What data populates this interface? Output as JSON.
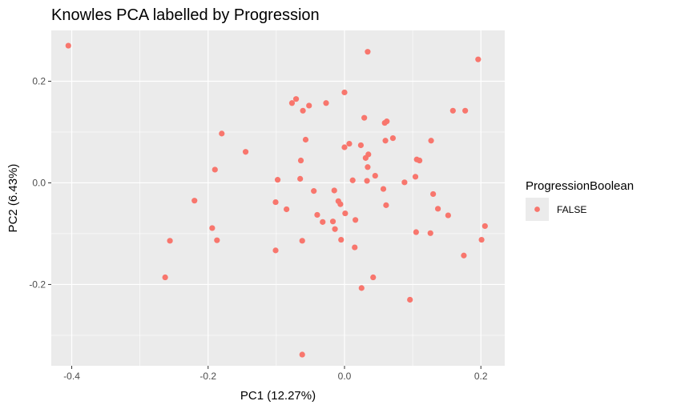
{
  "chart_data": {
    "type": "scatter",
    "title": "Knowles PCA labelled by Progression",
    "xlabel": "PC1 (12.27%)",
    "ylabel": "PC2 (6.43%)",
    "xlim": [
      -0.43,
      0.235
    ],
    "ylim": [
      -0.36,
      0.3
    ],
    "x_ticks": [
      -0.4,
      -0.2,
      0.0,
      0.2
    ],
    "x_tick_labels": [
      "-0.4",
      "-0.2",
      "0.0",
      "0.2"
    ],
    "y_ticks": [
      -0.2,
      0.0,
      0.2
    ],
    "y_tick_labels": [
      "-0.2",
      "0.0",
      "0.2"
    ],
    "x_minor_ticks": [
      -0.3,
      -0.1,
      0.1
    ],
    "y_minor_ticks": [
      -0.3,
      -0.1,
      0.1
    ],
    "grid": true,
    "panel_background": "#ebebeb",
    "grid_color": "#ffffff",
    "legend": {
      "title": "ProgressionBoolean",
      "entries": [
        {
          "label": "FALSE",
          "color": "#f8766d"
        }
      ],
      "placement": "right"
    },
    "series": [
      {
        "name": "FALSE",
        "color": "#f8766d",
        "points": [
          {
            "x": -0.405,
            "y": 0.27
          },
          {
            "x": 0.034,
            "y": 0.258
          },
          {
            "x": 0.196,
            "y": 0.243
          },
          {
            "x": -0.071,
            "y": 0.165
          },
          {
            "x": -0.077,
            "y": 0.157
          },
          {
            "x": -0.052,
            "y": 0.152
          },
          {
            "x": -0.027,
            "y": 0.157
          },
          {
            "x": -0.061,
            "y": 0.142
          },
          {
            "x": 0.0,
            "y": 0.178
          },
          {
            "x": 0.159,
            "y": 0.142
          },
          {
            "x": 0.177,
            "y": 0.142
          },
          {
            "x": 0.029,
            "y": 0.128
          },
          {
            "x": 0.062,
            "y": 0.121
          },
          {
            "x": 0.059,
            "y": 0.118
          },
          {
            "x": -0.18,
            "y": 0.097
          },
          {
            "x": -0.057,
            "y": 0.085
          },
          {
            "x": 0.071,
            "y": 0.088
          },
          {
            "x": 0.06,
            "y": 0.083
          },
          {
            "x": 0.127,
            "y": 0.083
          },
          {
            "x": 0.007,
            "y": 0.077
          },
          {
            "x": 0.024,
            "y": 0.074
          },
          {
            "x": 0.0,
            "y": 0.07
          },
          {
            "x": -0.145,
            "y": 0.061
          },
          {
            "x": 0.035,
            "y": 0.056
          },
          {
            "x": 0.031,
            "y": 0.049
          },
          {
            "x": -0.064,
            "y": 0.044
          },
          {
            "x": 0.106,
            "y": 0.046
          },
          {
            "x": 0.11,
            "y": 0.044
          },
          {
            "x": 0.034,
            "y": 0.031
          },
          {
            "x": -0.19,
            "y": 0.026
          },
          {
            "x": 0.045,
            "y": 0.014
          },
          {
            "x": 0.104,
            "y": 0.012
          },
          {
            "x": -0.098,
            "y": 0.006
          },
          {
            "x": -0.065,
            "y": 0.008
          },
          {
            "x": 0.012,
            "y": 0.005
          },
          {
            "x": 0.033,
            "y": 0.004
          },
          {
            "x": 0.088,
            "y": 0.001
          },
          {
            "x": 0.057,
            "y": -0.012
          },
          {
            "x": -0.045,
            "y": -0.016
          },
          {
            "x": -0.015,
            "y": -0.015
          },
          {
            "x": 0.13,
            "y": -0.022
          },
          {
            "x": -0.22,
            "y": -0.035
          },
          {
            "x": -0.101,
            "y": -0.038
          },
          {
            "x": -0.009,
            "y": -0.036
          },
          {
            "x": -0.006,
            "y": -0.042
          },
          {
            "x": 0.061,
            "y": -0.044
          },
          {
            "x": 0.137,
            "y": -0.051
          },
          {
            "x": -0.085,
            "y": -0.052
          },
          {
            "x": -0.04,
            "y": -0.063
          },
          {
            "x": 0.001,
            "y": -0.06
          },
          {
            "x": 0.152,
            "y": -0.064
          },
          {
            "x": -0.032,
            "y": -0.077
          },
          {
            "x": -0.017,
            "y": -0.076
          },
          {
            "x": 0.016,
            "y": -0.073
          },
          {
            "x": -0.194,
            "y": -0.089
          },
          {
            "x": -0.014,
            "y": -0.091
          },
          {
            "x": 0.206,
            "y": -0.085
          },
          {
            "x": 0.105,
            "y": -0.097
          },
          {
            "x": 0.126,
            "y": -0.099
          },
          {
            "x": -0.256,
            "y": -0.114
          },
          {
            "x": -0.187,
            "y": -0.113
          },
          {
            "x": -0.062,
            "y": -0.114
          },
          {
            "x": -0.005,
            "y": -0.112
          },
          {
            "x": 0.201,
            "y": -0.112
          },
          {
            "x": 0.015,
            "y": -0.127
          },
          {
            "x": -0.101,
            "y": -0.133
          },
          {
            "x": 0.175,
            "y": -0.143
          },
          {
            "x": -0.263,
            "y": -0.186
          },
          {
            "x": 0.042,
            "y": -0.186
          },
          {
            "x": 0.025,
            "y": -0.207
          },
          {
            "x": 0.096,
            "y": -0.23
          },
          {
            "x": -0.062,
            "y": -0.338
          }
        ]
      }
    ]
  }
}
